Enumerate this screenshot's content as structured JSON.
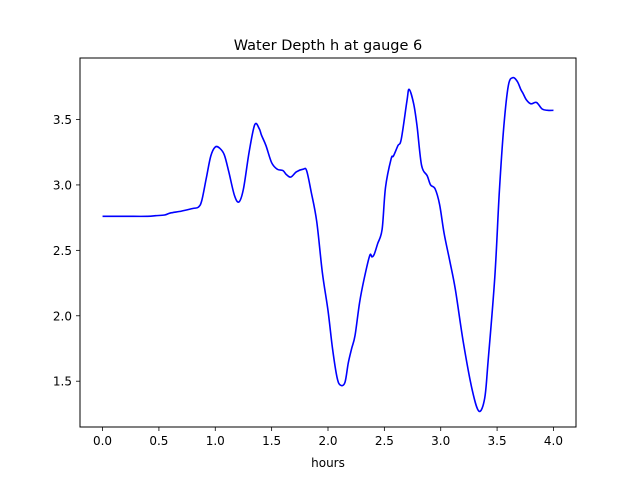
{
  "chart_data": {
    "type": "line",
    "title": "Water Depth h at gauge 6",
    "xlabel": "hours",
    "ylabel": "",
    "xlim": [
      -0.2,
      4.2
    ],
    "ylim": [
      1.15,
      3.97
    ],
    "xticks": [
      0.0,
      0.5,
      1.0,
      1.5,
      2.0,
      2.5,
      3.0,
      3.5,
      4.0
    ],
    "xtick_labels": [
      "0.0",
      "0.5",
      "1.0",
      "1.5",
      "2.0",
      "2.5",
      "3.0",
      "3.5",
      "4.0"
    ],
    "yticks": [
      1.5,
      2.0,
      2.5,
      3.0,
      3.5
    ],
    "ytick_labels": [
      "1.5",
      "2.0",
      "2.5",
      "3.0",
      "3.5"
    ],
    "grid": false,
    "series": [
      {
        "color": "#0000ff",
        "x": [
          0.0,
          0.2,
          0.4,
          0.47,
          0.55,
          0.6,
          0.7,
          0.8,
          0.85,
          0.88,
          0.92,
          0.96,
          1.0,
          1.04,
          1.08,
          1.12,
          1.17,
          1.21,
          1.25,
          1.3,
          1.35,
          1.39,
          1.41,
          1.45,
          1.5,
          1.55,
          1.6,
          1.63,
          1.67,
          1.72,
          1.78,
          1.81,
          1.85,
          1.9,
          1.95,
          2.0,
          2.04,
          2.08,
          2.11,
          2.15,
          2.18,
          2.21,
          2.24,
          2.28,
          2.32,
          2.37,
          2.39,
          2.41,
          2.44,
          2.48,
          2.51,
          2.56,
          2.58,
          2.62,
          2.65,
          2.7,
          2.72,
          2.76,
          2.79,
          2.83,
          2.88,
          2.91,
          2.95,
          2.99,
          3.03,
          3.08,
          3.13,
          3.2,
          3.28,
          3.34,
          3.39,
          3.42,
          3.48,
          3.52,
          3.56,
          3.6,
          3.64,
          3.68,
          3.71,
          3.73,
          3.76,
          3.8,
          3.85,
          3.9,
          3.95,
          4.0
        ],
        "y": [
          2.76,
          2.76,
          2.76,
          2.765,
          2.77,
          2.785,
          2.8,
          2.82,
          2.83,
          2.88,
          3.05,
          3.22,
          3.29,
          3.28,
          3.23,
          3.1,
          2.92,
          2.87,
          2.97,
          3.25,
          3.46,
          3.43,
          3.38,
          3.3,
          3.17,
          3.12,
          3.11,
          3.08,
          3.06,
          3.1,
          3.12,
          3.11,
          2.95,
          2.72,
          2.33,
          2.04,
          1.75,
          1.53,
          1.47,
          1.49,
          1.64,
          1.75,
          1.85,
          2.1,
          2.28,
          2.46,
          2.45,
          2.47,
          2.55,
          2.66,
          2.98,
          3.2,
          3.22,
          3.3,
          3.35,
          3.64,
          3.73,
          3.62,
          3.45,
          3.15,
          3.07,
          3.0,
          2.97,
          2.85,
          2.63,
          2.42,
          2.2,
          1.8,
          1.43,
          1.27,
          1.37,
          1.65,
          2.3,
          2.95,
          3.45,
          3.76,
          3.82,
          3.79,
          3.73,
          3.7,
          3.65,
          3.62,
          3.63,
          3.58,
          3.57,
          3.57
        ]
      }
    ]
  }
}
